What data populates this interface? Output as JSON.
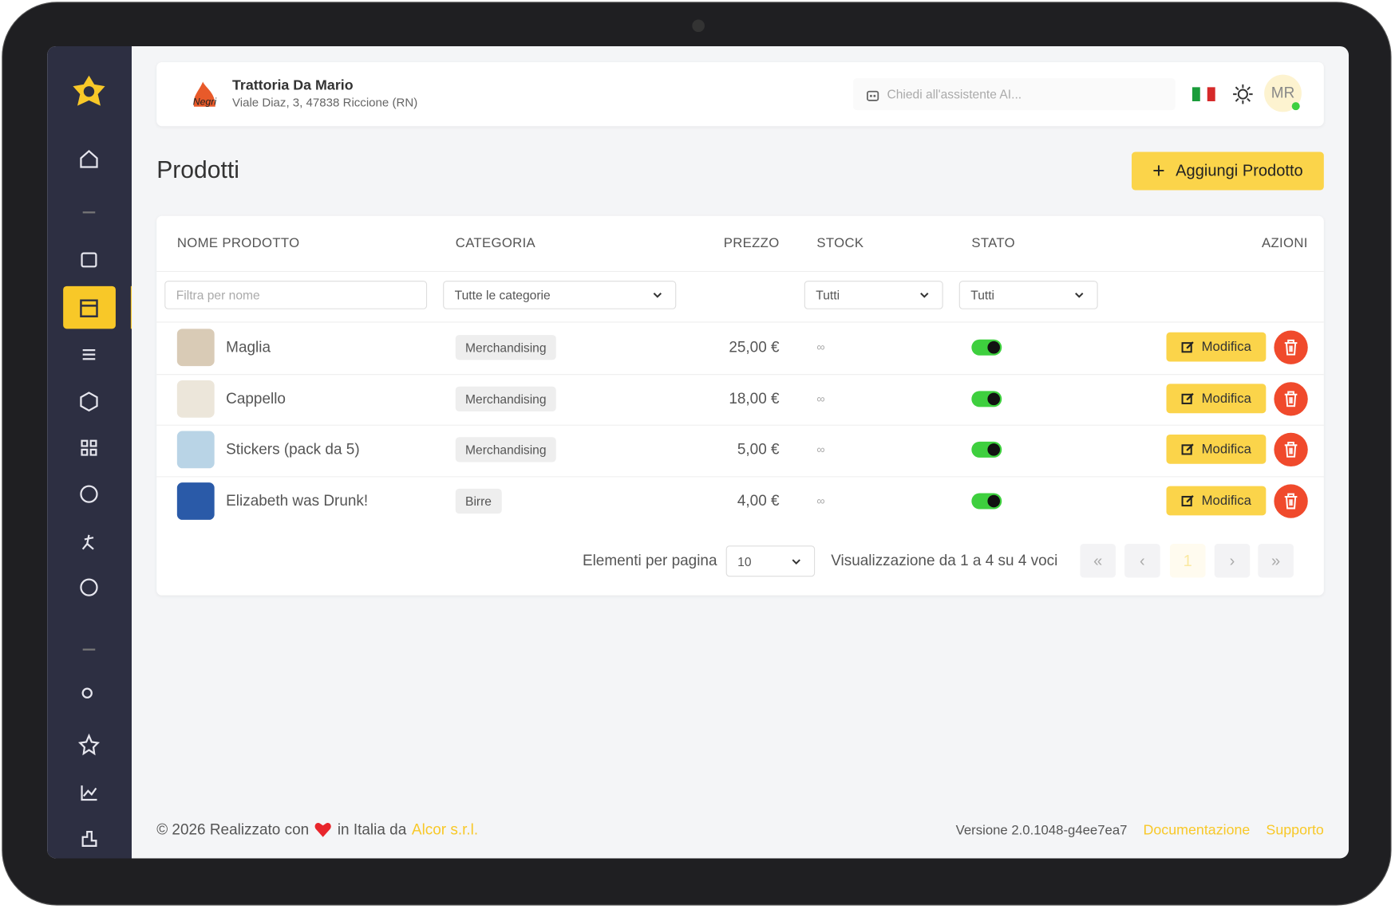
{
  "header": {
    "restaurant_name": "Trattoria Da Mario",
    "address": "Viale Diaz, 3, 47838 Riccione (RN)",
    "search_placeholder": "Chiedi all'assistente AI...",
    "avatar": "MR"
  },
  "page": {
    "title": "Prodotti",
    "add_button": "Aggiungi Prodotto"
  },
  "table": {
    "columns": [
      "NOME PRODOTTO",
      "CATEGORIA",
      "PREZZO",
      "STOCK",
      "STATO",
      "AZIONI"
    ],
    "filters": {
      "name_placeholder": "Filtra per nome",
      "category": "Tutte le categorie",
      "stock": "Tutti",
      "status": "Tutti"
    },
    "edit_label": "Modifica",
    "rows": [
      {
        "name": "Maglia",
        "category": "Merchandising",
        "price": "25,00 €",
        "stock": "∞"
      },
      {
        "name": "Cappello",
        "category": "Merchandising",
        "price": "18,00 €",
        "stock": "∞"
      },
      {
        "name": "Stickers (pack da 5)",
        "category": "Merchandising",
        "price": "5,00 €",
        "stock": "∞"
      },
      {
        "name": "Elizabeth was Drunk!",
        "category": "Birre",
        "price": "4,00 €",
        "stock": "∞"
      }
    ]
  },
  "pagination": {
    "per_page_label": "Elementi per pagina",
    "per_page": "10",
    "summary": "Visualizzazione da 1 a 4 su 4 voci",
    "current_page": "1"
  },
  "footer": {
    "made_with": "© 2026 Realizzato con",
    "in_italy": "in Italia da",
    "company": "Alcor s.r.l.",
    "version": "Versione 2.0.1048-g4ee7ea7",
    "docs": "Documentazione",
    "support": "Supporto"
  }
}
